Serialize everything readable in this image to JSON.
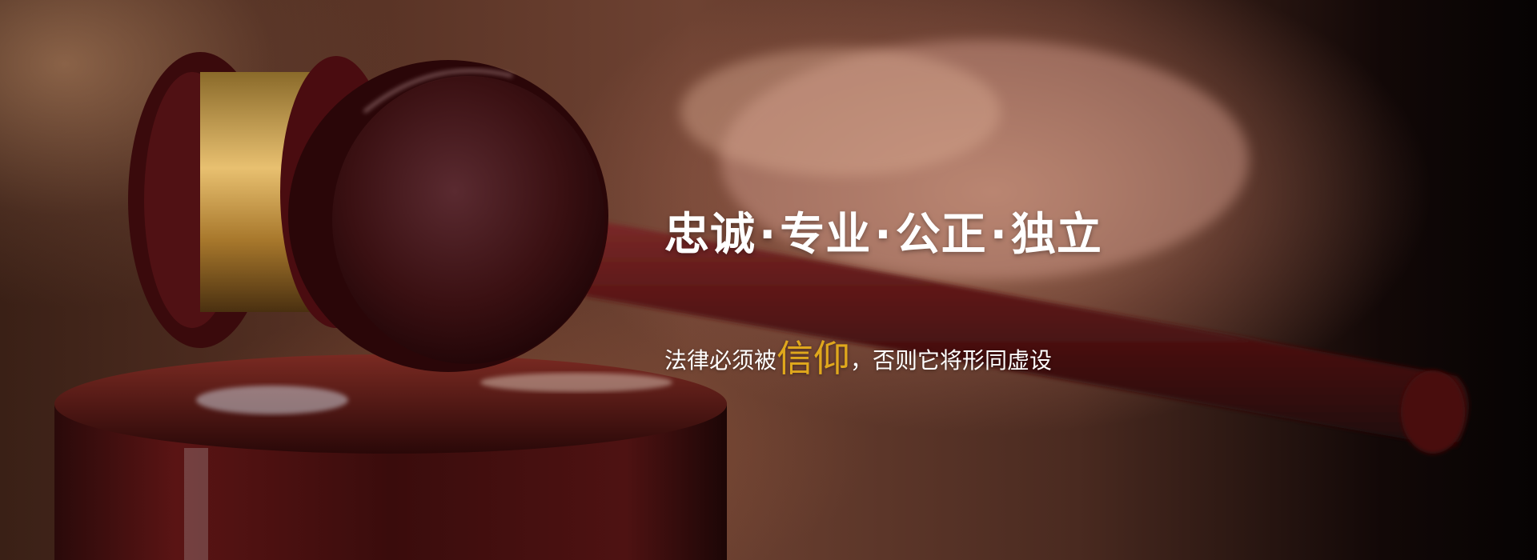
{
  "hero": {
    "tagline_parts": [
      "忠诚",
      "专业",
      "公正",
      "独立"
    ],
    "tagline_separator": "·",
    "motto_before": "法律必须被",
    "motto_accent": "信仰",
    "motto_after": "，否则它将形同虚设",
    "accent_color": "#e0a81c",
    "text_color": "#ffffff"
  },
  "image": {
    "subject": "gavel-photo"
  }
}
